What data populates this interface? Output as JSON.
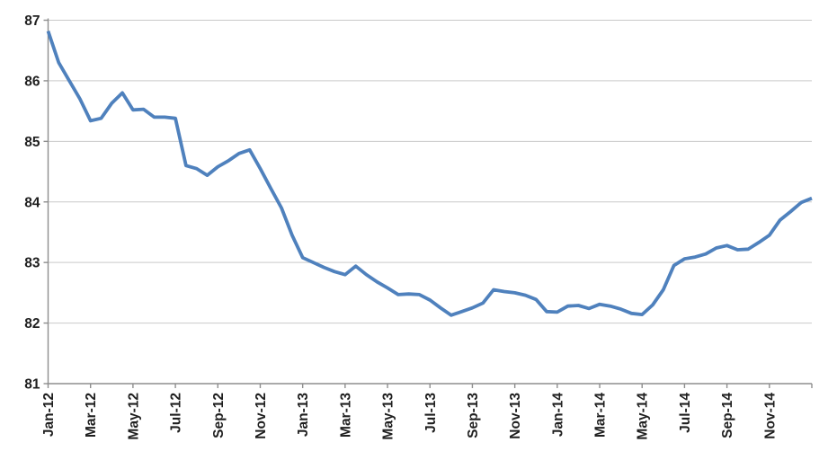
{
  "chart_data": {
    "type": "line",
    "title": "",
    "legend": "none",
    "grid": true,
    "x_axis": {
      "start": "Jan-12",
      "end": "Jan-15",
      "tick_interval_months": 2,
      "tick_labels": [
        "Jan-12",
        "Mar-12",
        "May-12",
        "Jul-12",
        "Sep-12",
        "Nov-12",
        "Jan-13",
        "Mar-13",
        "May-13",
        "Jul-13",
        "Sep-13",
        "Nov-13",
        "Jan-14",
        "Mar-14",
        "May-14",
        "Jul-14",
        "Sep-14",
        "Nov-14"
      ]
    },
    "y_axis": {
      "min": 81,
      "max": 87,
      "step": 1,
      "tick_labels": [
        "87",
        "86",
        "85",
        "84",
        "83",
        "82",
        "81"
      ]
    },
    "series": [
      {
        "name": "monthly-rate-series",
        "x_months_since_jan12": [
          0,
          0.5,
          1,
          1.5,
          2,
          2.5,
          3,
          3.5,
          4,
          4.5,
          5,
          5.5,
          6,
          6.5,
          7,
          7.5,
          8,
          8.5,
          9,
          9.5,
          10,
          10.5,
          11,
          11.5,
          12,
          12.5,
          13,
          13.5,
          14,
          14.5,
          15,
          15.5,
          16,
          16.5,
          17,
          17.5,
          18,
          18.5,
          19,
          19.5,
          20,
          20.5,
          21,
          21.5,
          22,
          22.5,
          23,
          23.5,
          24,
          24.5,
          25,
          25.5,
          26,
          26.5,
          27,
          27.5,
          28,
          28.5,
          29,
          29.5,
          30,
          30.5,
          31,
          31.5,
          32,
          32.5,
          33,
          33.5,
          34,
          34.5,
          35,
          35.5,
          36
        ],
        "values": [
          86.82,
          86.3,
          86.0,
          85.7,
          85.34,
          85.38,
          85.63,
          85.8,
          85.52,
          85.53,
          85.4,
          85.4,
          85.38,
          84.6,
          84.55,
          84.44,
          84.58,
          84.68,
          84.8,
          84.86,
          84.55,
          84.22,
          83.9,
          83.45,
          83.08,
          83.0,
          82.92,
          82.85,
          82.8,
          82.94,
          82.8,
          82.68,
          82.58,
          82.47,
          82.48,
          82.47,
          82.38,
          82.25,
          82.13,
          82.19,
          82.25,
          82.33,
          82.55,
          82.52,
          82.5,
          82.46,
          82.39,
          82.19,
          82.18,
          82.28,
          82.29,
          82.24,
          82.31,
          82.28,
          82.23,
          82.16,
          82.14,
          82.3,
          82.55,
          82.95,
          83.06,
          83.09,
          83.14,
          83.24,
          83.28,
          83.21,
          83.22,
          83.33,
          83.45,
          83.7,
          83.84,
          83.99,
          84.06
        ]
      }
    ]
  },
  "colors": {
    "line": "#4F81BD",
    "gridline": "#C9C9C9",
    "axis": "#8E8E8E",
    "tick": "#8E8E8E",
    "label_text": "#1F1F1F",
    "background": "#FFFFFF"
  }
}
